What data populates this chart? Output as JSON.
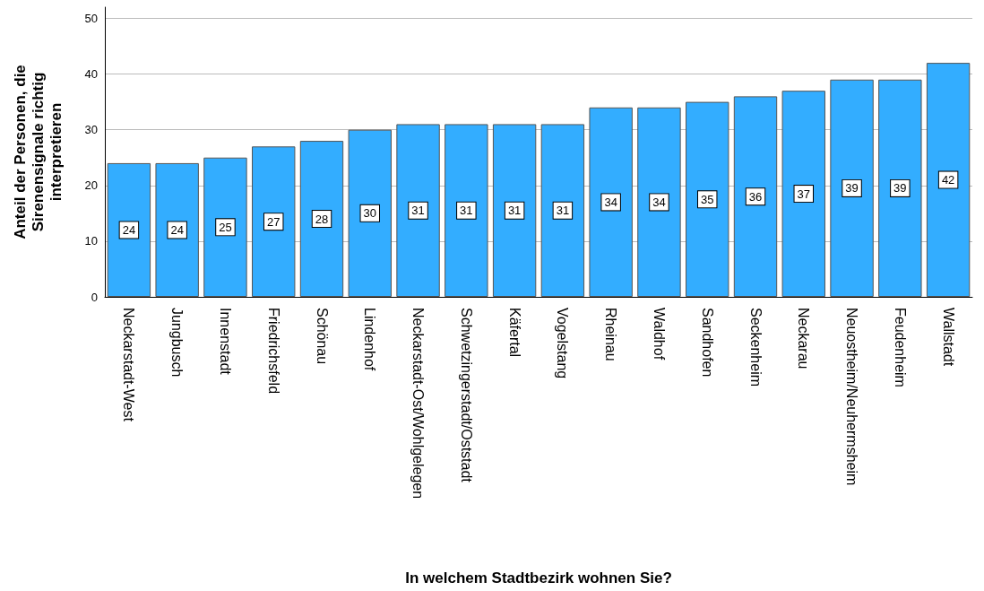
{
  "chart_data": {
    "type": "bar",
    "xlabel": "In welchem Stadtbezirk wohnen Sie?",
    "ylabel": "Anteil der Personen, die\nSirenensignale richtig\ninterpretieren",
    "categories": [
      "Neckarstadt-West",
      "Jungbusch",
      "Innenstadt",
      "Friedrichsfeld",
      "Schönau",
      "Lindenhof",
      "Neckarstadt-Ost/Wohlgelegen",
      "Schwetzingerstadt/Oststadt",
      "Käfertal",
      "Vogelstang",
      "Rheinau",
      "Waldhof",
      "Sandhofen",
      "Seckenheim",
      "Neckarau",
      "Neuostheim/Neuhermsheim",
      "Feudenheim",
      "Wallstadt"
    ],
    "values": [
      24,
      24,
      25,
      27,
      28,
      30,
      31,
      31,
      31,
      31,
      34,
      34,
      35,
      36,
      37,
      39,
      39,
      42
    ],
    "color": "#33adff",
    "ylim": [
      0,
      52
    ],
    "yticks": [
      0,
      10,
      20,
      30,
      40,
      50
    ],
    "grid": "y",
    "data_labels": true
  }
}
